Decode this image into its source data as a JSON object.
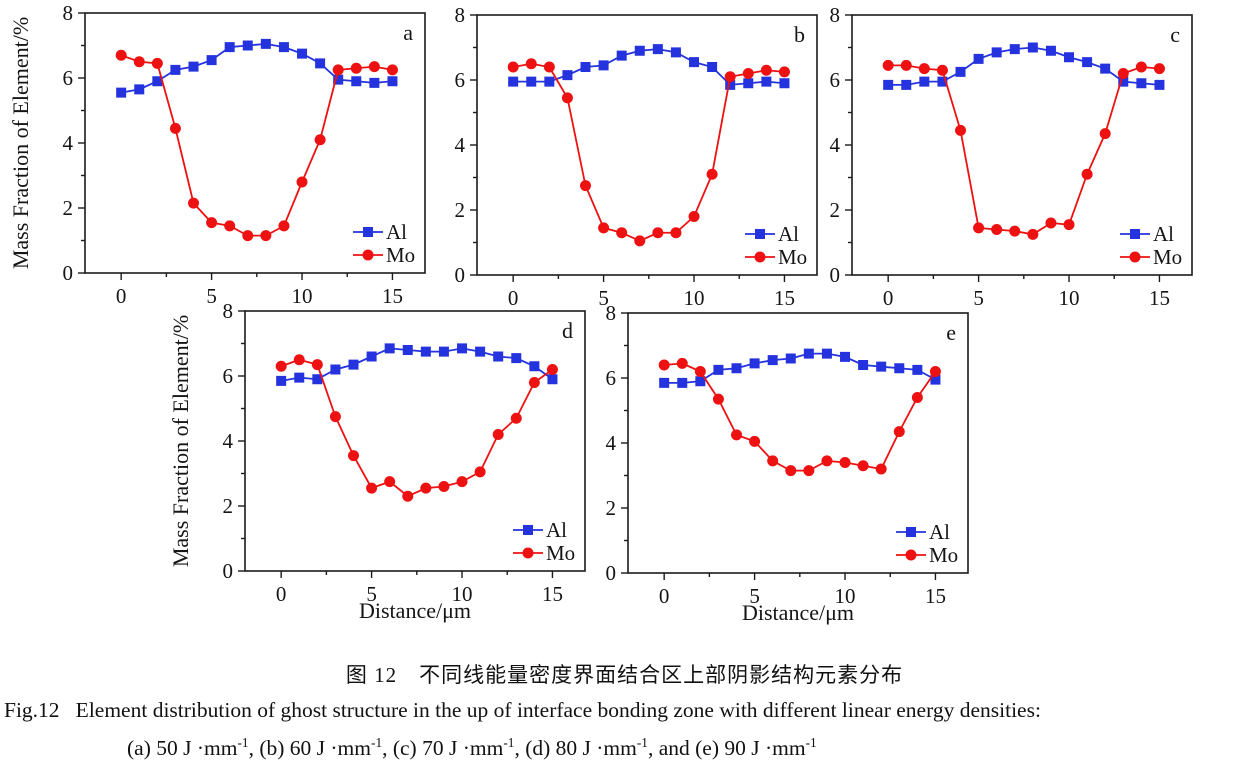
{
  "figure": {
    "caption_zh": "图 12　不同线能量密度界面结合区上部阴影结构元素分布",
    "caption_en_line1": "Fig.12   Element distribution of ghost structure in the up of interface bonding zone with different linear energy densities:",
    "caption_en_line2_parts": [
      {
        "text": "(a) 50 J ·mm"
      },
      {
        "sup": "-1"
      },
      {
        "text": ", (b) 60 J ·mm"
      },
      {
        "sup": "-1"
      },
      {
        "text": ", (c) 70 J ·mm"
      },
      {
        "sup": "-1"
      },
      {
        "text": ", (d) 80 J ·mm"
      },
      {
        "sup": "-1"
      },
      {
        "text": ", and (e) 90 J ·mm"
      },
      {
        "sup": "-1"
      }
    ],
    "colors": {
      "al_series": "#2433dd",
      "mo_series": "#ee1111",
      "axis": "#1a1a1a"
    }
  },
  "chart_data": [
    {
      "type": "line",
      "panel": "a",
      "condition": "50 J·mm-1",
      "xlabel": "",
      "ylabel": "Mass Fraction of Element/%",
      "xlim": [
        -2,
        16.8
      ],
      "ylim": [
        0,
        8
      ],
      "xticks": [
        0,
        5,
        10,
        15
      ],
      "yticks": [
        0,
        2,
        4,
        6,
        8
      ],
      "legend_position": "lower-right",
      "x": [
        0,
        1,
        2,
        3,
        4,
        5,
        6,
        7,
        8,
        9,
        10,
        11,
        12,
        13,
        14,
        15
      ],
      "series": [
        {
          "name": "Al",
          "marker": "square",
          "color": "#2433dd",
          "values": [
            5.55,
            5.65,
            5.9,
            6.25,
            6.35,
            6.55,
            6.95,
            7.0,
            7.05,
            6.95,
            6.75,
            6.45,
            5.95,
            5.9,
            5.85,
            5.9
          ]
        },
        {
          "name": "Mo",
          "marker": "circle",
          "color": "#ee1111",
          "values": [
            6.7,
            6.5,
            6.45,
            4.45,
            2.15,
            1.55,
            1.45,
            1.15,
            1.15,
            1.45,
            2.8,
            4.1,
            6.25,
            6.3,
            6.35,
            6.25
          ]
        }
      ]
    },
    {
      "type": "line",
      "panel": "b",
      "condition": "60 J·mm-1",
      "xlabel": "",
      "ylabel": "",
      "xlim": [
        -2,
        16.8
      ],
      "ylim": [
        0,
        8
      ],
      "xticks": [
        0,
        5,
        10,
        15
      ],
      "yticks": [
        0,
        2,
        4,
        6,
        8
      ],
      "legend_position": "lower-right",
      "x": [
        0,
        1,
        2,
        3,
        4,
        5,
        6,
        7,
        8,
        9,
        10,
        11,
        12,
        13,
        14,
        15
      ],
      "series": [
        {
          "name": "Al",
          "marker": "square",
          "color": "#2433dd",
          "values": [
            5.95,
            5.95,
            5.95,
            6.15,
            6.4,
            6.45,
            6.75,
            6.9,
            6.95,
            6.85,
            6.55,
            6.4,
            5.85,
            5.9,
            5.95,
            5.9
          ]
        },
        {
          "name": "Mo",
          "marker": "circle",
          "color": "#ee1111",
          "values": [
            6.4,
            6.5,
            6.4,
            5.45,
            2.75,
            1.45,
            1.3,
            1.05,
            1.3,
            1.3,
            1.8,
            3.1,
            6.1,
            6.2,
            6.3,
            6.25
          ]
        }
      ]
    },
    {
      "type": "line",
      "panel": "c",
      "condition": "70 J·mm-1",
      "xlabel": "",
      "ylabel": "",
      "xlim": [
        -2,
        16.8
      ],
      "ylim": [
        0,
        8
      ],
      "xticks": [
        0,
        5,
        10,
        15
      ],
      "yticks": [
        0,
        2,
        4,
        6,
        8
      ],
      "legend_position": "lower-right",
      "x": [
        0,
        1,
        2,
        3,
        4,
        5,
        6,
        7,
        8,
        9,
        10,
        11,
        12,
        13,
        14,
        15
      ],
      "series": [
        {
          "name": "Al",
          "marker": "square",
          "color": "#2433dd",
          "values": [
            5.85,
            5.85,
            5.95,
            5.95,
            6.25,
            6.65,
            6.85,
            6.95,
            7.0,
            6.9,
            6.7,
            6.55,
            6.35,
            5.95,
            5.9,
            5.85
          ]
        },
        {
          "name": "Mo",
          "marker": "circle",
          "color": "#ee1111",
          "values": [
            6.45,
            6.45,
            6.35,
            6.3,
            4.45,
            1.45,
            1.4,
            1.35,
            1.25,
            1.6,
            1.55,
            3.1,
            4.35,
            6.2,
            6.4,
            6.35
          ]
        }
      ]
    },
    {
      "type": "line",
      "panel": "d",
      "condition": "80 J·mm-1",
      "xlabel": "Distance/μm",
      "ylabel": "Mass Fraction of Element/%",
      "xlim": [
        -2,
        16.8
      ],
      "ylim": [
        0,
        8
      ],
      "xticks": [
        0,
        5,
        10,
        15
      ],
      "yticks": [
        0,
        2,
        4,
        6,
        8
      ],
      "legend_position": "lower-right",
      "x": [
        0,
        1,
        2,
        3,
        4,
        5,
        6,
        7,
        8,
        9,
        10,
        11,
        12,
        13,
        14,
        15
      ],
      "series": [
        {
          "name": "Al",
          "marker": "square",
          "color": "#2433dd",
          "values": [
            5.85,
            5.95,
            5.9,
            6.2,
            6.35,
            6.6,
            6.85,
            6.8,
            6.75,
            6.75,
            6.85,
            6.75,
            6.6,
            6.55,
            6.3,
            5.9
          ]
        },
        {
          "name": "Mo",
          "marker": "circle",
          "color": "#ee1111",
          "values": [
            6.3,
            6.5,
            6.35,
            4.75,
            3.55,
            2.55,
            2.75,
            2.3,
            2.55,
            2.6,
            2.75,
            3.05,
            4.2,
            4.7,
            5.8,
            6.2
          ]
        }
      ]
    },
    {
      "type": "line",
      "panel": "e",
      "condition": "90 J·mm-1",
      "xlabel": "Distance/μm",
      "ylabel": "",
      "xlim": [
        -2,
        16.8
      ],
      "ylim": [
        0,
        8
      ],
      "xticks": [
        0,
        5,
        10,
        15
      ],
      "yticks": [
        0,
        2,
        4,
        6,
        8
      ],
      "legend_position": "lower-right",
      "x": [
        0,
        1,
        2,
        3,
        4,
        5,
        6,
        7,
        8,
        9,
        10,
        11,
        12,
        13,
        14,
        15
      ],
      "series": [
        {
          "name": "Al",
          "marker": "square",
          "color": "#2433dd",
          "values": [
            5.85,
            5.85,
            5.9,
            6.25,
            6.3,
            6.45,
            6.55,
            6.6,
            6.75,
            6.75,
            6.65,
            6.4,
            6.35,
            6.3,
            6.25,
            5.95
          ]
        },
        {
          "name": "Mo",
          "marker": "circle",
          "color": "#ee1111",
          "values": [
            6.4,
            6.45,
            6.2,
            5.35,
            4.25,
            4.05,
            3.45,
            3.15,
            3.15,
            3.45,
            3.4,
            3.3,
            3.2,
            4.35,
            5.4,
            6.2
          ]
        }
      ]
    }
  ]
}
